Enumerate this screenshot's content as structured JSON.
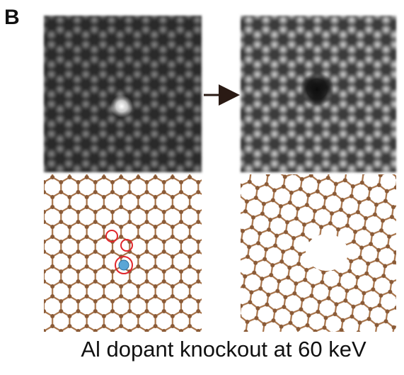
{
  "panel_label": "B",
  "caption": "Al dopant knockout at 60 keV"
}
